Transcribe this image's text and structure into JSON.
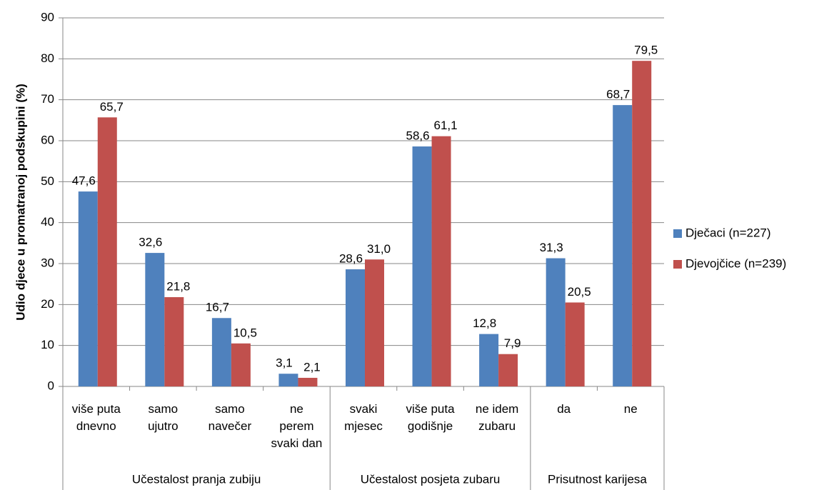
{
  "chart_data": {
    "type": "bar",
    "y_label": "Udio djece u promatranoj podskupini (%)",
    "categories": [
      "više puta\ndnevno",
      "samo\nujutro",
      "samo\nnavečer",
      "ne\nperem\nsvaki dan",
      "svaki\nmjesec",
      "više puta\ngodišnje",
      "ne idem\nzubaru",
      "da",
      "ne"
    ],
    "groups": [
      {
        "name": "Učestalost pranja zubiju",
        "span": 4
      },
      {
        "name": "Učestalost posjeta zubaru",
        "span": 3
      },
      {
        "name": "Prisutnost karijesa",
        "span": 2
      }
    ],
    "series": [
      {
        "name": "Dječaci (n=227)",
        "color": "#4f81bd",
        "values": [
          47.6,
          32.6,
          16.7,
          3.1,
          28.6,
          58.6,
          12.8,
          31.3,
          68.7
        ],
        "value_labels": [
          "47,6",
          "32,6",
          "16,7",
          "3,1",
          "28,6",
          "58,6",
          "12,8",
          "31,3",
          "68,7"
        ]
      },
      {
        "name": "Djevojčice (n=239)",
        "color": "#c0504d",
        "values": [
          65.7,
          21.8,
          10.5,
          2.1,
          31.0,
          61.1,
          7.9,
          20.5,
          79.5
        ],
        "value_labels": [
          "65,7",
          "21,8",
          "10,5",
          "2,1",
          "31,0",
          "61,1",
          "7,9",
          "20,5",
          "79,5"
        ]
      }
    ],
    "ylim": [
      0,
      90
    ],
    "yticks": [
      0,
      10,
      20,
      30,
      40,
      50,
      60,
      70,
      80,
      90
    ],
    "grid": true,
    "legend": "right"
  }
}
